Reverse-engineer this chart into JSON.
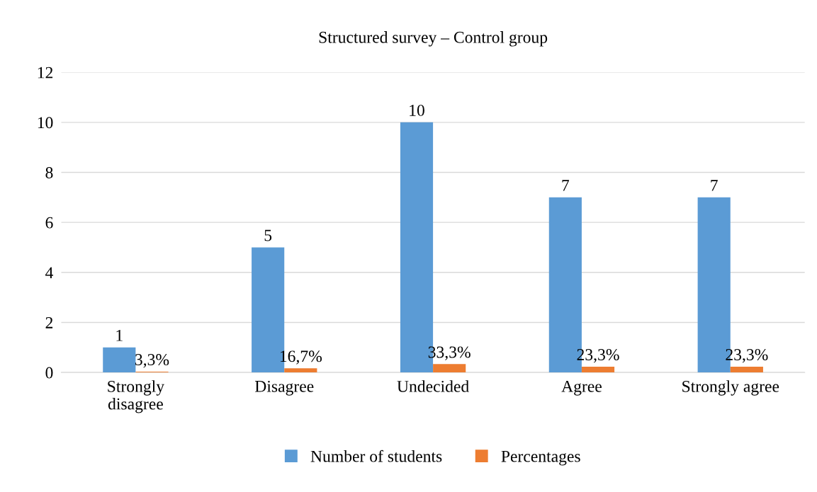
{
  "chart_data": {
    "type": "bar",
    "title": "Structured survey – Control group",
    "categories": [
      "Strongly\ndisagree",
      "Disagree",
      "Undecided",
      "Agree",
      "Strongly agree"
    ],
    "series": [
      {
        "name": "Number of students",
        "color": "#5b9bd5",
        "values": [
          1,
          5,
          10,
          7,
          7
        ],
        "value_labels": [
          "1",
          "5",
          "10",
          "7",
          "7"
        ]
      },
      {
        "name": "Percentages",
        "color": "#ed7d31",
        "values": [
          0.033,
          0.167,
          0.333,
          0.233,
          0.233
        ],
        "value_labels": [
          "3,3%",
          "16,7%",
          "33,3%",
          "23,3%",
          "23,3%"
        ]
      }
    ],
    "ylim": [
      0,
      12
    ],
    "yticks": [
      0,
      2,
      4,
      6,
      8,
      10,
      12
    ],
    "grid": "y",
    "legend": "bottom"
  }
}
